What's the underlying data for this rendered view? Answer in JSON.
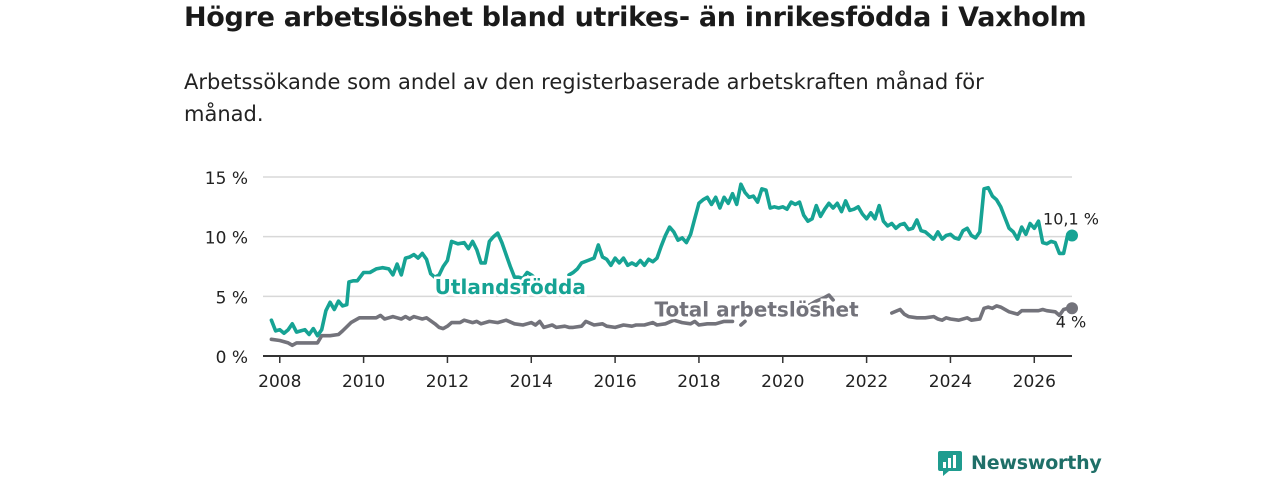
{
  "title": "Högre arbetslöshet bland utrikes- än inrikesfödda i Vaxholm",
  "subtitle": "Arbetssökande som andel av den registerbaserade arbetskraften månad för månad.",
  "brand": "Newsworthy",
  "colors": {
    "utlandsfodda": "#16a394",
    "total": "#73737b",
    "grid": "#d8d8d8",
    "axis": "#333333"
  },
  "chart_data": {
    "type": "line",
    "title": "Högre arbetslöshet bland utrikes- än inrikesfödda i Vaxholm",
    "xlabel": "",
    "ylabel": "",
    "ylim": [
      0,
      15
    ],
    "xlim": [
      2007.6,
      2026.9
    ],
    "y_ticks": [
      0,
      5,
      10,
      15
    ],
    "y_tick_labels": [
      "0 %",
      "5 %",
      "10 %",
      "15 %"
    ],
    "x_ticks": [
      2008,
      2010,
      2012,
      2014,
      2016,
      2018,
      2020,
      2022,
      2024,
      2026
    ],
    "x_tick_labels": [
      "2008",
      "2010",
      "2012",
      "2014",
      "2016",
      "2018",
      "2020",
      "2022",
      "2024",
      "2026"
    ],
    "series": [
      {
        "name": "Utlandsfödda",
        "end_label": "10,1 %",
        "points": [
          [
            2007.8,
            3.0
          ],
          [
            2007.9,
            2.1
          ],
          [
            2008.0,
            2.2
          ],
          [
            2008.1,
            1.9
          ],
          [
            2008.2,
            2.2
          ],
          [
            2008.3,
            2.7
          ],
          [
            2008.4,
            2.0
          ],
          [
            2008.5,
            2.1
          ],
          [
            2008.6,
            2.2
          ],
          [
            2008.7,
            1.8
          ],
          [
            2008.8,
            2.3
          ],
          [
            2008.9,
            1.7
          ],
          [
            2009.0,
            2.2
          ],
          [
            2009.1,
            3.8
          ],
          [
            2009.2,
            4.5
          ],
          [
            2009.3,
            3.9
          ],
          [
            2009.4,
            4.6
          ],
          [
            2009.5,
            4.2
          ],
          [
            2009.6,
            4.3
          ],
          [
            2009.65,
            6.2
          ],
          [
            2009.75,
            6.3
          ],
          [
            2009.85,
            6.3
          ],
          [
            2010.0,
            7.0
          ],
          [
            2010.15,
            7.0
          ],
          [
            2010.3,
            7.3
          ],
          [
            2010.45,
            7.4
          ],
          [
            2010.6,
            7.3
          ],
          [
            2010.7,
            6.8
          ],
          [
            2010.8,
            7.7
          ],
          [
            2010.9,
            6.8
          ],
          [
            2011.0,
            8.2
          ],
          [
            2011.1,
            8.3
          ],
          [
            2011.2,
            8.5
          ],
          [
            2011.3,
            8.2
          ],
          [
            2011.4,
            8.6
          ],
          [
            2011.5,
            8.1
          ],
          [
            2011.6,
            6.9
          ],
          [
            2011.7,
            6.6
          ],
          [
            2011.8,
            6.8
          ],
          [
            2011.9,
            7.5
          ],
          [
            2012.0,
            8.0
          ],
          [
            2012.1,
            9.6
          ],
          [
            2012.25,
            9.4
          ],
          [
            2012.4,
            9.5
          ],
          [
            2012.5,
            9.0
          ],
          [
            2012.6,
            9.6
          ],
          [
            2012.7,
            8.9
          ],
          [
            2012.8,
            7.8
          ],
          [
            2012.9,
            7.8
          ],
          [
            2013.0,
            9.6
          ],
          [
            2013.1,
            10.0
          ],
          [
            2013.2,
            10.3
          ],
          [
            2013.3,
            9.5
          ],
          [
            2013.4,
            8.5
          ],
          [
            2013.5,
            7.5
          ],
          [
            2013.6,
            6.6
          ],
          [
            2013.7,
            6.6
          ],
          [
            2013.8,
            6.5
          ],
          [
            2013.9,
            7.0
          ],
          [
            2014.0,
            6.8
          ],
          [
            2014.1,
            6.5
          ]
        ],
        "points_2": [
          [
            2014.9,
            6.8
          ],
          [
            2015.0,
            7.0
          ],
          [
            2015.1,
            7.3
          ],
          [
            2015.2,
            7.8
          ],
          [
            2015.35,
            8.0
          ],
          [
            2015.5,
            8.2
          ],
          [
            2015.6,
            9.3
          ],
          [
            2015.7,
            8.3
          ],
          [
            2015.8,
            8.1
          ],
          [
            2015.9,
            7.6
          ],
          [
            2016.0,
            8.2
          ],
          [
            2016.1,
            7.8
          ],
          [
            2016.2,
            8.2
          ],
          [
            2016.3,
            7.6
          ],
          [
            2016.4,
            7.8
          ],
          [
            2016.5,
            7.6
          ],
          [
            2016.6,
            8.0
          ],
          [
            2016.7,
            7.6
          ],
          [
            2016.8,
            8.1
          ],
          [
            2016.9,
            7.9
          ],
          [
            2017.0,
            8.2
          ],
          [
            2017.1,
            9.2
          ],
          [
            2017.2,
            10.1
          ],
          [
            2017.3,
            10.8
          ],
          [
            2017.4,
            10.4
          ],
          [
            2017.5,
            9.7
          ],
          [
            2017.6,
            9.9
          ],
          [
            2017.7,
            9.5
          ],
          [
            2017.8,
            10.2
          ],
          [
            2017.9,
            11.5
          ],
          [
            2018.0,
            12.8
          ],
          [
            2018.1,
            13.1
          ],
          [
            2018.2,
            13.3
          ],
          [
            2018.3,
            12.7
          ],
          [
            2018.4,
            13.3
          ],
          [
            2018.5,
            12.4
          ],
          [
            2018.6,
            13.3
          ],
          [
            2018.7,
            12.8
          ],
          [
            2018.8,
            13.6
          ],
          [
            2018.9,
            12.7
          ],
          [
            2019.0,
            14.4
          ],
          [
            2019.1,
            13.7
          ],
          [
            2019.2,
            13.3
          ],
          [
            2019.3,
            13.4
          ],
          [
            2019.4,
            12.9
          ],
          [
            2019.5,
            14.0
          ],
          [
            2019.6,
            13.9
          ],
          [
            2019.7,
            12.4
          ],
          [
            2019.8,
            12.5
          ],
          [
            2019.9,
            12.4
          ],
          [
            2020.0,
            12.5
          ],
          [
            2020.1,
            12.3
          ],
          [
            2020.2,
            12.9
          ],
          [
            2020.3,
            12.7
          ],
          [
            2020.4,
            12.9
          ],
          [
            2020.5,
            11.8
          ],
          [
            2020.6,
            11.3
          ],
          [
            2020.7,
            11.5
          ],
          [
            2020.8,
            12.6
          ],
          [
            2020.9,
            11.7
          ],
          [
            2021.0,
            12.3
          ],
          [
            2021.1,
            12.8
          ],
          [
            2021.2,
            12.4
          ],
          [
            2021.3,
            12.8
          ],
          [
            2021.4,
            12.1
          ],
          [
            2021.5,
            13.0
          ],
          [
            2021.6,
            12.2
          ],
          [
            2021.7,
            12.3
          ],
          [
            2021.8,
            12.5
          ],
          [
            2021.9,
            11.9
          ],
          [
            2022.0,
            11.5
          ],
          [
            2022.1,
            12.0
          ],
          [
            2022.2,
            11.5
          ],
          [
            2022.3,
            12.6
          ],
          [
            2022.4,
            11.3
          ],
          [
            2022.5,
            10.9
          ],
          [
            2022.6,
            11.1
          ],
          [
            2022.7,
            10.7
          ],
          [
            2022.8,
            11.0
          ],
          [
            2022.9,
            11.1
          ],
          [
            2023.0,
            10.6
          ],
          [
            2023.1,
            10.7
          ],
          [
            2023.2,
            11.4
          ],
          [
            2023.3,
            10.5
          ],
          [
            2023.4,
            10.4
          ],
          [
            2023.5,
            10.1
          ],
          [
            2023.6,
            9.8
          ],
          [
            2023.7,
            10.4
          ],
          [
            2023.8,
            9.8
          ],
          [
            2023.9,
            10.1
          ],
          [
            2024.0,
            10.2
          ],
          [
            2024.1,
            9.9
          ],
          [
            2024.2,
            9.8
          ],
          [
            2024.3,
            10.5
          ],
          [
            2024.4,
            10.7
          ],
          [
            2024.5,
            10.1
          ],
          [
            2024.6,
            9.9
          ],
          [
            2024.7,
            10.4
          ],
          [
            2024.8,
            14.0
          ],
          [
            2024.9,
            14.1
          ],
          [
            2025.0,
            13.4
          ],
          [
            2025.1,
            13.1
          ],
          [
            2025.2,
            12.5
          ],
          [
            2025.3,
            11.6
          ],
          [
            2025.4,
            10.7
          ],
          [
            2025.5,
            10.4
          ],
          [
            2025.6,
            9.8
          ],
          [
            2025.7,
            10.8
          ],
          [
            2025.8,
            10.2
          ],
          [
            2025.9,
            11.1
          ],
          [
            2026.0,
            10.7
          ],
          [
            2026.1,
            11.3
          ],
          [
            2026.2,
            9.5
          ],
          [
            2026.3,
            9.4
          ],
          [
            2026.4,
            9.6
          ],
          [
            2026.5,
            9.5
          ],
          [
            2026.6,
            8.6
          ],
          [
            2026.7,
            8.6
          ],
          [
            2026.8,
            10.2
          ],
          [
            2026.9,
            10.1
          ]
        ]
      },
      {
        "name": "Total arbetslöshet",
        "end_label": "4 %",
        "points": [
          [
            2007.8,
            1.4
          ],
          [
            2008.0,
            1.3
          ],
          [
            2008.2,
            1.1
          ],
          [
            2008.3,
            0.9
          ],
          [
            2008.4,
            1.1
          ],
          [
            2008.6,
            1.1
          ],
          [
            2008.8,
            1.1
          ],
          [
            2008.9,
            1.1
          ],
          [
            2009.0,
            1.7
          ],
          [
            2009.2,
            1.7
          ],
          [
            2009.4,
            1.8
          ],
          [
            2009.5,
            2.1
          ],
          [
            2009.7,
            2.8
          ],
          [
            2009.9,
            3.2
          ],
          [
            2010.1,
            3.2
          ],
          [
            2010.3,
            3.2
          ],
          [
            2010.4,
            3.4
          ],
          [
            2010.5,
            3.1
          ],
          [
            2010.6,
            3.2
          ],
          [
            2010.7,
            3.3
          ],
          [
            2010.8,
            3.2
          ],
          [
            2010.9,
            3.1
          ],
          [
            2011.0,
            3.3
          ],
          [
            2011.1,
            3.1
          ],
          [
            2011.2,
            3.3
          ],
          [
            2011.3,
            3.2
          ],
          [
            2011.4,
            3.1
          ],
          [
            2011.5,
            3.2
          ],
          [
            2011.7,
            2.7
          ],
          [
            2011.8,
            2.4
          ],
          [
            2011.9,
            2.3
          ],
          [
            2012.0,
            2.5
          ],
          [
            2012.1,
            2.8
          ],
          [
            2012.3,
            2.8
          ],
          [
            2012.4,
            3.0
          ],
          [
            2012.6,
            2.8
          ],
          [
            2012.7,
            2.9
          ],
          [
            2012.8,
            2.7
          ],
          [
            2013.0,
            2.9
          ],
          [
            2013.2,
            2.8
          ],
          [
            2013.4,
            3.0
          ],
          [
            2013.6,
            2.7
          ],
          [
            2013.8,
            2.6
          ],
          [
            2013.9,
            2.7
          ],
          [
            2014.0,
            2.8
          ],
          [
            2014.1,
            2.6
          ],
          [
            2014.2,
            2.9
          ],
          [
            2014.3,
            2.4
          ],
          [
            2014.4,
            2.5
          ],
          [
            2014.5,
            2.6
          ],
          [
            2014.6,
            2.4
          ],
          [
            2014.8,
            2.5
          ],
          [
            2014.9,
            2.4
          ],
          [
            2015.0,
            2.4
          ],
          [
            2015.2,
            2.5
          ],
          [
            2015.3,
            2.9
          ],
          [
            2015.5,
            2.6
          ],
          [
            2015.7,
            2.7
          ],
          [
            2015.8,
            2.5
          ],
          [
            2016.0,
            2.4
          ],
          [
            2016.2,
            2.6
          ],
          [
            2016.4,
            2.5
          ],
          [
            2016.5,
            2.6
          ],
          [
            2016.7,
            2.6
          ],
          [
            2016.9,
            2.8
          ],
          [
            2017.0,
            2.6
          ],
          [
            2017.2,
            2.7
          ],
          [
            2017.4,
            3.0
          ],
          [
            2017.6,
            2.8
          ],
          [
            2017.8,
            2.7
          ],
          [
            2017.9,
            2.9
          ],
          [
            2018.0,
            2.6
          ],
          [
            2018.2,
            2.7
          ],
          [
            2018.4,
            2.7
          ],
          [
            2018.6,
            2.9
          ],
          [
            2018.8,
            2.9
          ]
        ],
        "points_2": [
          [
            2019.0,
            2.6
          ],
          [
            2019.1,
            2.9
          ]
        ],
        "points_3": [
          [
            2020.5,
            4.3
          ],
          [
            2020.6,
            4.2
          ],
          [
            2020.8,
            4.6
          ],
          [
            2021.0,
            4.9
          ],
          [
            2021.1,
            5.1
          ],
          [
            2021.2,
            4.7
          ]
        ],
        "points_4": [
          [
            2022.6,
            3.6
          ],
          [
            2022.8,
            3.9
          ],
          [
            2022.9,
            3.5
          ],
          [
            2023.0,
            3.3
          ],
          [
            2023.2,
            3.2
          ],
          [
            2023.4,
            3.2
          ],
          [
            2023.6,
            3.3
          ],
          [
            2023.7,
            3.1
          ],
          [
            2023.8,
            3.0
          ],
          [
            2023.9,
            3.2
          ],
          [
            2024.0,
            3.1
          ],
          [
            2024.2,
            3.0
          ],
          [
            2024.4,
            3.2
          ],
          [
            2024.5,
            3.0
          ],
          [
            2024.7,
            3.1
          ],
          [
            2024.8,
            4.0
          ],
          [
            2024.9,
            4.1
          ],
          [
            2025.0,
            4.0
          ],
          [
            2025.1,
            4.2
          ],
          [
            2025.2,
            4.1
          ],
          [
            2025.4,
            3.7
          ],
          [
            2025.6,
            3.5
          ],
          [
            2025.7,
            3.8
          ],
          [
            2025.9,
            3.8
          ],
          [
            2026.1,
            3.8
          ],
          [
            2026.2,
            3.9
          ],
          [
            2026.3,
            3.8
          ],
          [
            2026.5,
            3.7
          ],
          [
            2026.6,
            3.4
          ],
          [
            2026.7,
            3.9
          ],
          [
            2026.8,
            4.0
          ],
          [
            2026.9,
            4.0
          ]
        ]
      }
    ],
    "annotations": [
      {
        "text": "Utlandsfödda",
        "series": "Utlandsfödda",
        "x": 2014.0,
        "y": 5.2
      },
      {
        "text": "Total arbetslöshet",
        "series": "Total arbetslöshet",
        "x": 2022.0,
        "y": 3.3
      }
    ]
  }
}
